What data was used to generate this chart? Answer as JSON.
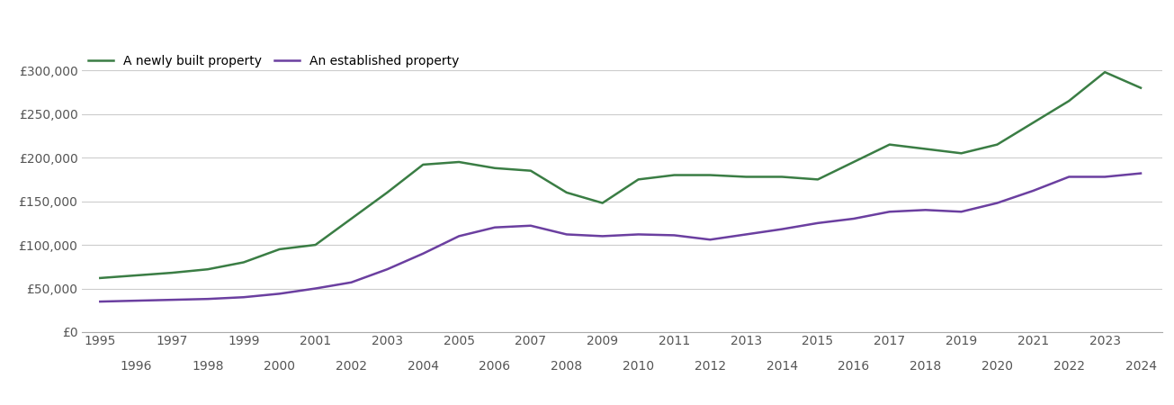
{
  "years": [
    1995,
    1996,
    1997,
    1998,
    1999,
    2000,
    2001,
    2002,
    2003,
    2004,
    2005,
    2006,
    2007,
    2008,
    2009,
    2010,
    2011,
    2012,
    2013,
    2014,
    2015,
    2016,
    2017,
    2018,
    2019,
    2020,
    2021,
    2022,
    2023,
    2024
  ],
  "new_build": [
    62000,
    65000,
    68000,
    72000,
    80000,
    95000,
    100000,
    130000,
    160000,
    192000,
    195000,
    188000,
    185000,
    160000,
    148000,
    175000,
    180000,
    180000,
    178000,
    178000,
    175000,
    195000,
    215000,
    210000,
    205000,
    215000,
    240000,
    265000,
    298000,
    280000
  ],
  "established": [
    35000,
    36000,
    37000,
    38000,
    40000,
    44000,
    50000,
    57000,
    72000,
    90000,
    110000,
    120000,
    122000,
    112000,
    110000,
    112000,
    111000,
    106000,
    112000,
    118000,
    125000,
    130000,
    138000,
    140000,
    138000,
    148000,
    162000,
    178000,
    178000,
    182000
  ],
  "new_build_color": "#3a7d44",
  "established_color": "#6b3fa0",
  "new_build_label": "A newly built property",
  "established_label": "An established property",
  "ylim": [
    0,
    325000
  ],
  "yticks": [
    0,
    50000,
    100000,
    150000,
    200000,
    250000,
    300000
  ],
  "ytick_labels": [
    "£0",
    "£50,000",
    "£100,000",
    "£150,000",
    "£200,000",
    "£250,000",
    "£300,000"
  ],
  "xtick_major": [
    1995,
    1997,
    1999,
    2001,
    2003,
    2005,
    2007,
    2009,
    2011,
    2013,
    2015,
    2017,
    2019,
    2021,
    2023
  ],
  "xtick_minor": [
    1996,
    1998,
    2000,
    2002,
    2004,
    2006,
    2008,
    2010,
    2012,
    2014,
    2016,
    2018,
    2020,
    2022,
    2024
  ],
  "grid_color": "#cccccc",
  "background_color": "#ffffff",
  "line_width": 1.8,
  "legend_fontsize": 10,
  "tick_fontsize": 10,
  "tick_color": "#555555"
}
